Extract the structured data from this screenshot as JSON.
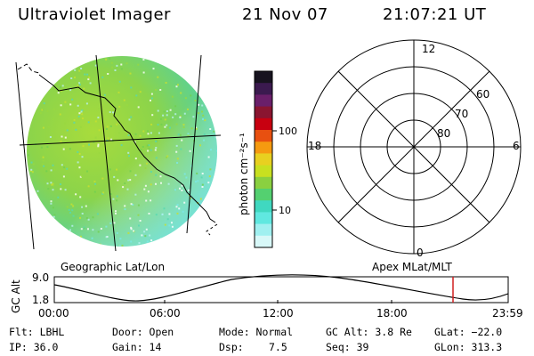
{
  "header": {
    "instrument": "Ultraviolet Imager",
    "date": "21 Nov 07",
    "time": "21:07:21 UT"
  },
  "imager": {
    "left_label": "Geographic Lat/Lon",
    "right_label": "Apex MLat/MLT"
  },
  "colorbar": {
    "unit_label": "photon cm⁻²s⁻¹",
    "ticks": [
      "100",
      "10"
    ],
    "colors": [
      "#17131f",
      "#3b1a4f",
      "#6a1f6a",
      "#8a1530",
      "#c80010",
      "#e85010",
      "#f59a10",
      "#e8d020",
      "#c8e020",
      "#8ad040",
      "#54d070",
      "#40d8c0",
      "#60e8e0",
      "#a0f0f0",
      "#d8f8f8"
    ]
  },
  "polar": {
    "mlt_labels": {
      "top": "12",
      "left": "18",
      "right": "6",
      "bottom": "0"
    },
    "lat_labels": [
      "60",
      "70",
      "80"
    ]
  },
  "altitude_plot": {
    "ylabel": "GC Alt",
    "yticks": [
      "9.0",
      "1.8"
    ],
    "xticks": [
      "00:00",
      "06:00",
      "12:00",
      "18:00",
      "23:59"
    ],
    "current_marker_time": "21:07",
    "marker_color": "#d02020"
  },
  "status": {
    "filter": "Flt: LBHL",
    "ip": "IP: 36.0",
    "door": "Door: Open",
    "gain": "Gain: 14",
    "mode": "Mode: Normal",
    "dsp_label": "Dsp:",
    "dsp_value": "7.5",
    "gc_alt": "GC Alt: 3.8 Re",
    "seq": "Seq: 39",
    "glat": "GLat: −22.0",
    "glon": "GLon: 313.3"
  }
}
